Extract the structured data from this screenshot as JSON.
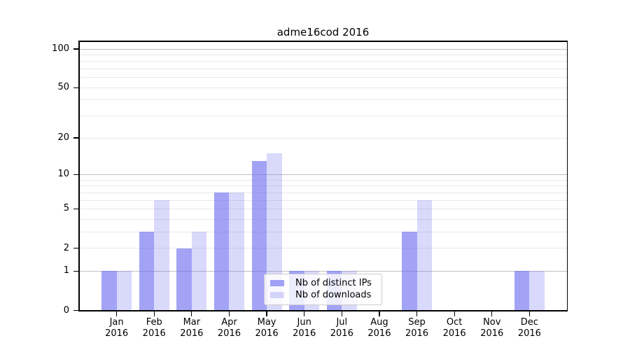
{
  "chart_data": {
    "type": "bar",
    "title": "adme16cod 2016",
    "x_year": "2016",
    "categories": [
      "Jan",
      "Feb",
      "Mar",
      "Apr",
      "May",
      "Jun",
      "Jul",
      "Aug",
      "Sep",
      "Oct",
      "Nov",
      "Dec"
    ],
    "series": [
      {
        "key": "distinct-ips",
        "name": "Nb of distinct IPs",
        "color": "rgba(102,102,240,0.6)",
        "values": [
          1,
          3,
          2,
          7,
          13,
          1,
          1,
          0,
          3,
          0,
          0,
          1
        ]
      },
      {
        "key": "downloads",
        "name": "Nb of downloads",
        "color": "rgba(102,102,240,0.25)",
        "values": [
          1,
          6,
          3,
          7,
          15,
          1,
          1,
          0,
          6,
          0,
          0,
          1
        ]
      }
    ],
    "y_axis": {
      "scale": "log10(1+value)",
      "ylim": [
        0,
        100
      ],
      "ticks": [
        0,
        1,
        2,
        5,
        10,
        20,
        50,
        100
      ],
      "major_gridlines": [
        1,
        10,
        100
      ],
      "minor_gridlines": [
        2,
        3,
        4,
        5,
        6,
        7,
        8,
        9,
        20,
        30,
        40,
        50,
        60,
        70,
        80,
        90
      ]
    },
    "legend": {
      "position": "lower-center"
    },
    "grid": true,
    "colors": {
      "minor_grid": "#e8e8e8",
      "major_grid": "#c0c0c0",
      "axis": "#000000",
      "text": "#000000",
      "legend_bg": "rgba(255,255,255,0.8)",
      "legend_border": "#cccccc"
    }
  }
}
